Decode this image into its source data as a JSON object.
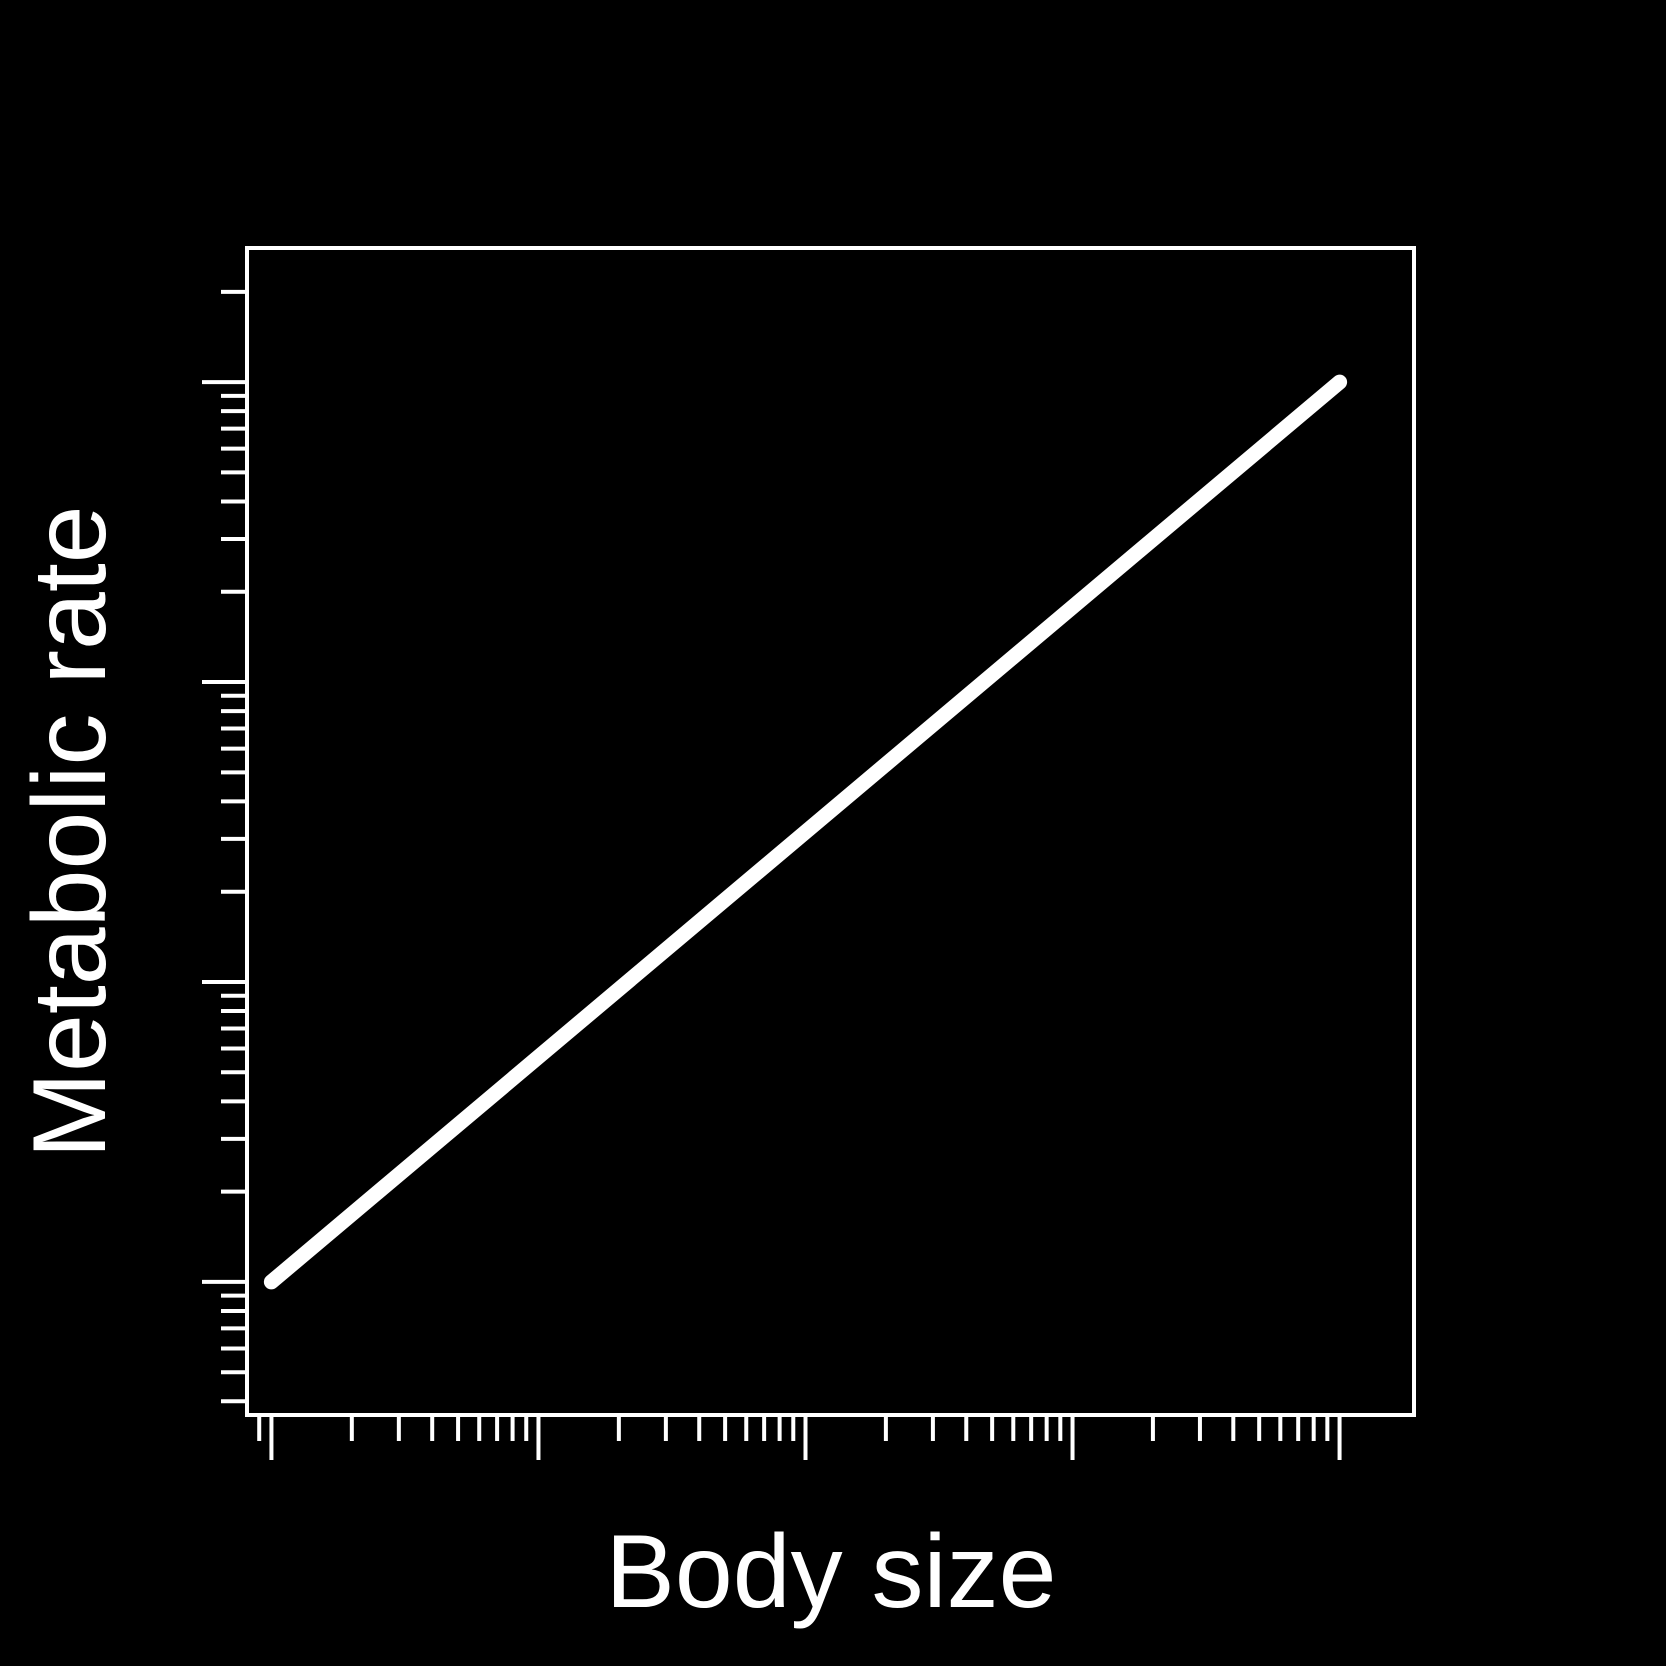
{
  "chart_data": {
    "type": "line",
    "title": "",
    "xlabel": "Body size",
    "ylabel": "Metabolic rate",
    "x_scale": "log",
    "y_scale": "log",
    "xlim": [
      0.81,
      19000
    ],
    "ylim": [
      0.36,
      2800
    ],
    "x_major_ticks": [
      10,
      100,
      1000,
      10000
    ],
    "y_major_ticks": [
      1,
      10,
      100,
      1000
    ],
    "grid": false,
    "legend": "none",
    "series": [
      {
        "x": [
          1,
          10000
        ],
        "y": [
          1,
          1000
        ]
      }
    ],
    "colors": {
      "background": "#000000",
      "foreground": "#ffffff",
      "line": "#ffffff"
    }
  }
}
